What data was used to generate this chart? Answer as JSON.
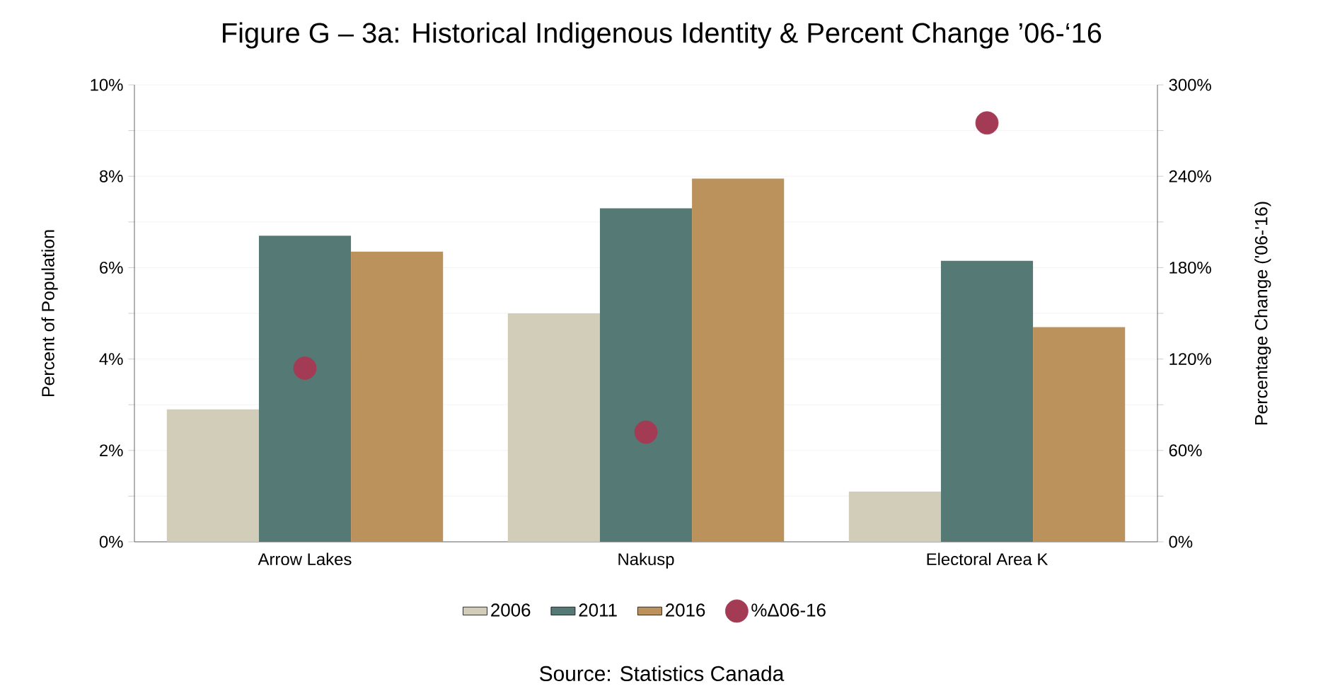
{
  "chart_data": {
    "type": "bar",
    "title": "Figure G – 3a: Historical Indigenous Identity & Percent Change ’06-‘16",
    "annotations": [
      "Source: Statistics Canada"
    ],
    "ylabel": "Percent of Population",
    "y2label": "Percentage Change ('06-'16)",
    "categories": [
      "Arrow Lakes",
      "Nakusp",
      "Electoral Area K"
    ],
    "series": [
      {
        "name": "2006",
        "color": "#d1cdb8",
        "values": [
          2.9,
          5.0,
          1.1
        ]
      },
      {
        "name": "2011",
        "color": "#557a76",
        "values": [
          6.7,
          7.3,
          6.15
        ]
      },
      {
        "name": "2016",
        "color": "#bb925c",
        "values": [
          6.35,
          7.95,
          4.7
        ]
      },
      {
        "name": "%Δ06-16",
        "type": "scatter",
        "axis": "y2",
        "marker": "circle",
        "color": "#a33b55",
        "x": [
          "Arrow Lakes",
          "Nakusp",
          "Electoral Area K"
        ],
        "values": [
          114,
          72,
          275
        ]
      }
    ],
    "ylim": [
      0,
      10
    ],
    "yticks": [
      {
        "value": 0,
        "label": "0%"
      },
      {
        "value": 1,
        "label": null
      },
      {
        "value": 2,
        "label": "2%"
      },
      {
        "value": 3,
        "label": null
      },
      {
        "value": 4,
        "label": "4%"
      },
      {
        "value": 5,
        "label": null
      },
      {
        "value": 6,
        "label": "6%"
      },
      {
        "value": 7,
        "label": null
      },
      {
        "value": 8,
        "label": "8%"
      },
      {
        "value": 9,
        "label": null
      },
      {
        "value": 10,
        "label": "10%"
      }
    ],
    "y2lim": [
      0,
      300
    ],
    "y2ticks": [
      {
        "value": 0,
        "label": "0%"
      },
      {
        "value": 30,
        "label": null
      },
      {
        "value": 60,
        "label": "60%"
      },
      {
        "value": 90,
        "label": null
      },
      {
        "value": 120,
        "label": "120%"
      },
      {
        "value": 150,
        "label": null
      },
      {
        "value": 180,
        "label": "180%"
      },
      {
        "value": 210,
        "label": null
      },
      {
        "value": 240,
        "label": "240%"
      },
      {
        "value": 270,
        "label": null
      },
      {
        "value": 300,
        "label": "300%"
      }
    ],
    "grid": "y",
    "legend": "bottom"
  }
}
